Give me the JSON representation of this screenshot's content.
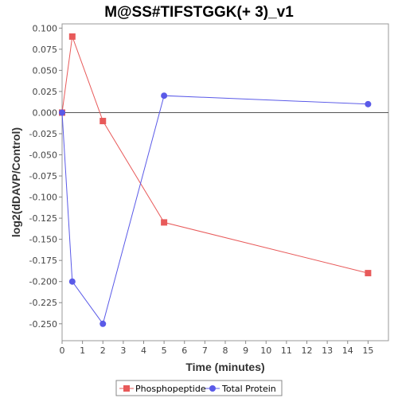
{
  "chart_data": {
    "type": "line",
    "title": "M@SS#TIFSTGGK(+ 3)_v1",
    "xlabel": "Time (minutes)",
    "ylabel": "log2(dDAVP/Control)",
    "xlim": [
      0,
      16
    ],
    "ylim": [
      -0.27,
      0.105
    ],
    "x_ticks": [
      0,
      1,
      2,
      3,
      4,
      5,
      6,
      7,
      8,
      9,
      10,
      11,
      12,
      13,
      14,
      15
    ],
    "y_ticks": [
      0.1,
      0.075,
      0.05,
      0.025,
      0.0,
      -0.025,
      -0.05,
      -0.075,
      -0.1,
      -0.125,
      -0.15,
      -0.175,
      -0.2,
      -0.225,
      -0.25
    ],
    "y_tick_labels": [
      "0.100",
      "0.075",
      "0.050",
      "0.025",
      "0.000",
      "-0.025",
      "-0.050",
      "-0.075",
      "-0.100",
      "-0.125",
      "-0.150",
      "-0.175",
      "-0.200",
      "-0.225",
      "-0.250"
    ],
    "zero_line": true,
    "grid": false,
    "legend_position": "bottom",
    "series": [
      {
        "name": "Phosphopeptide",
        "color": "#e85a5a",
        "marker": "square",
        "x": [
          0,
          0.5,
          2,
          5,
          15
        ],
        "y": [
          0.0,
          0.09,
          -0.01,
          -0.13,
          -0.19
        ]
      },
      {
        "name": "Total Protein",
        "color": "#5a5ae8",
        "marker": "circle",
        "x": [
          0,
          0.5,
          2,
          5,
          15
        ],
        "y": [
          0.0,
          -0.2,
          -0.25,
          0.02,
          0.01
        ]
      }
    ]
  }
}
